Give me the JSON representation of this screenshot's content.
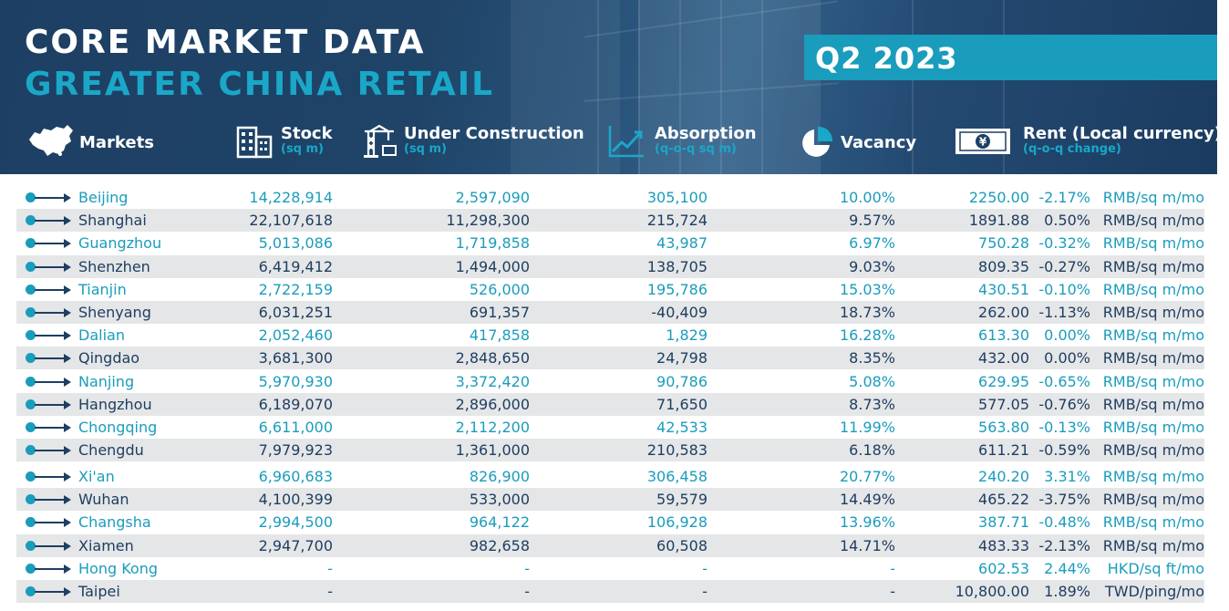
{
  "header": {
    "title_line1": "CORE MARKET DATA",
    "title_line2": "GREATER CHINA RETAIL",
    "quarter": "Q2 2023"
  },
  "columns": {
    "markets": {
      "label": "Markets",
      "icon": "china-map-icon"
    },
    "stock": {
      "label": "Stock",
      "sub": "(sq m)",
      "icon": "building-icon"
    },
    "under_construction": {
      "label": "Under Construction",
      "sub": "(sq m)",
      "icon": "crane-icon"
    },
    "absorption": {
      "label": "Absorption",
      "sub": "(q-o-q sq m)",
      "icon": "trend-chart-icon"
    },
    "vacancy": {
      "label": "Vacancy",
      "icon": "pie-chart-icon"
    },
    "rent": {
      "label": "Rent (Local currency)",
      "sub": "(q-o-q change)",
      "icon": "yen-banknote-icon"
    }
  },
  "colors": {
    "banner": "#1d3f63",
    "accent": "#1a9cbc",
    "row_shade": "#e5e6e7",
    "text_dark": "#1e3e62",
    "text_teal": "#1a9cbc"
  },
  "rows": [
    {
      "market": "Beijing",
      "stock": "14,228,914",
      "under_construction": "2,597,090",
      "absorption": "305,100",
      "vacancy": "10.00%",
      "rent": "2250.00",
      "change": "-2.17%",
      "unit": "RMB/sq m/mo"
    },
    {
      "market": "Shanghai",
      "stock": "22,107,618",
      "under_construction": "11,298,300",
      "absorption": "215,724",
      "vacancy": "9.57%",
      "rent": "1891.88",
      "change": "0.50%",
      "unit": "RMB/sq m/mo"
    },
    {
      "market": "Guangzhou",
      "stock": "5,013,086",
      "under_construction": "1,719,858",
      "absorption": "43,987",
      "vacancy": "6.97%",
      "rent": "750.28",
      "change": "-0.32%",
      "unit": "RMB/sq m/mo"
    },
    {
      "market": "Shenzhen",
      "stock": "6,419,412",
      "under_construction": "1,494,000",
      "absorption": "138,705",
      "vacancy": "9.03%",
      "rent": "809.35",
      "change": "-0.27%",
      "unit": "RMB/sq m/mo"
    },
    {
      "market": "Tianjin",
      "stock": "2,722,159",
      "under_construction": "526,000",
      "absorption": "195,786",
      "vacancy": "15.03%",
      "rent": "430.51",
      "change": "-0.10%",
      "unit": "RMB/sq m/mo"
    },
    {
      "market": "Shenyang",
      "stock": "6,031,251",
      "under_construction": "691,357",
      "absorption": "-40,409",
      "vacancy": "18.73%",
      "rent": "262.00",
      "change": "-1.13%",
      "unit": "RMB/sq m/mo"
    },
    {
      "market": "Dalian",
      "stock": "2,052,460",
      "under_construction": "417,858",
      "absorption": "1,829",
      "vacancy": "16.28%",
      "rent": "613.30",
      "change": "0.00%",
      "unit": "RMB/sq m/mo"
    },
    {
      "market": "Qingdao",
      "stock": "3,681,300",
      "under_construction": "2,848,650",
      "absorption": "24,798",
      "vacancy": "8.35%",
      "rent": "432.00",
      "change": "0.00%",
      "unit": "RMB/sq m/mo"
    },
    {
      "market": "Nanjing",
      "stock": "5,970,930",
      "under_construction": "3,372,420",
      "absorption": "90,786",
      "vacancy": "5.08%",
      "rent": "629.95",
      "change": "-0.65%",
      "unit": "RMB/sq m/mo"
    },
    {
      "market": "Hangzhou",
      "stock": "6,189,070",
      "under_construction": "2,896,000",
      "absorption": "71,650",
      "vacancy": "8.73%",
      "rent": "577.05",
      "change": "-0.76%",
      "unit": "RMB/sq m/mo"
    },
    {
      "market": "Chongqing",
      "stock": "6,611,000",
      "under_construction": "2,112,200",
      "absorption": "42,533",
      "vacancy": "11.99%",
      "rent": "563.80",
      "change": "-0.13%",
      "unit": "RMB/sq m/mo"
    },
    {
      "market": "Chengdu",
      "stock": "7,979,923",
      "under_construction": "1,361,000",
      "absorption": "210,583",
      "vacancy": "6.18%",
      "rent": "611.21",
      "change": "-0.59%",
      "unit": "RMB/sq m/mo"
    },
    {
      "market": "Xi'an",
      "stock": "6,960,683",
      "under_construction": "826,900",
      "absorption": "306,458",
      "vacancy": "20.77%",
      "rent": "240.20",
      "change": "3.31%",
      "unit": "RMB/sq m/mo"
    },
    {
      "market": "Wuhan",
      "stock": "4,100,399",
      "under_construction": "533,000",
      "absorption": "59,579",
      "vacancy": "14.49%",
      "rent": "465.22",
      "change": "-3.75%",
      "unit": "RMB/sq m/mo"
    },
    {
      "market": "Changsha",
      "stock": "2,994,500",
      "under_construction": "964,122",
      "absorption": "106,928",
      "vacancy": "13.96%",
      "rent": "387.71",
      "change": "-0.48%",
      "unit": "RMB/sq m/mo"
    },
    {
      "market": "Xiamen",
      "stock": "2,947,700",
      "under_construction": "982,658",
      "absorption": "60,508",
      "vacancy": "14.71%",
      "rent": "483.33",
      "change": "-2.13%",
      "unit": "RMB/sq m/mo"
    },
    {
      "market": "Hong Kong",
      "stock": "-",
      "under_construction": "-",
      "absorption": "-",
      "vacancy": "-",
      "rent": "602.53",
      "change": "2.44%",
      "unit": "HKD/sq ft/mo"
    },
    {
      "market": "Taipei",
      "stock": "-",
      "under_construction": "-",
      "absorption": "-",
      "vacancy": "-",
      "rent": "10,800.00",
      "change": "1.89%",
      "unit": "TWD/ping/mo"
    }
  ]
}
